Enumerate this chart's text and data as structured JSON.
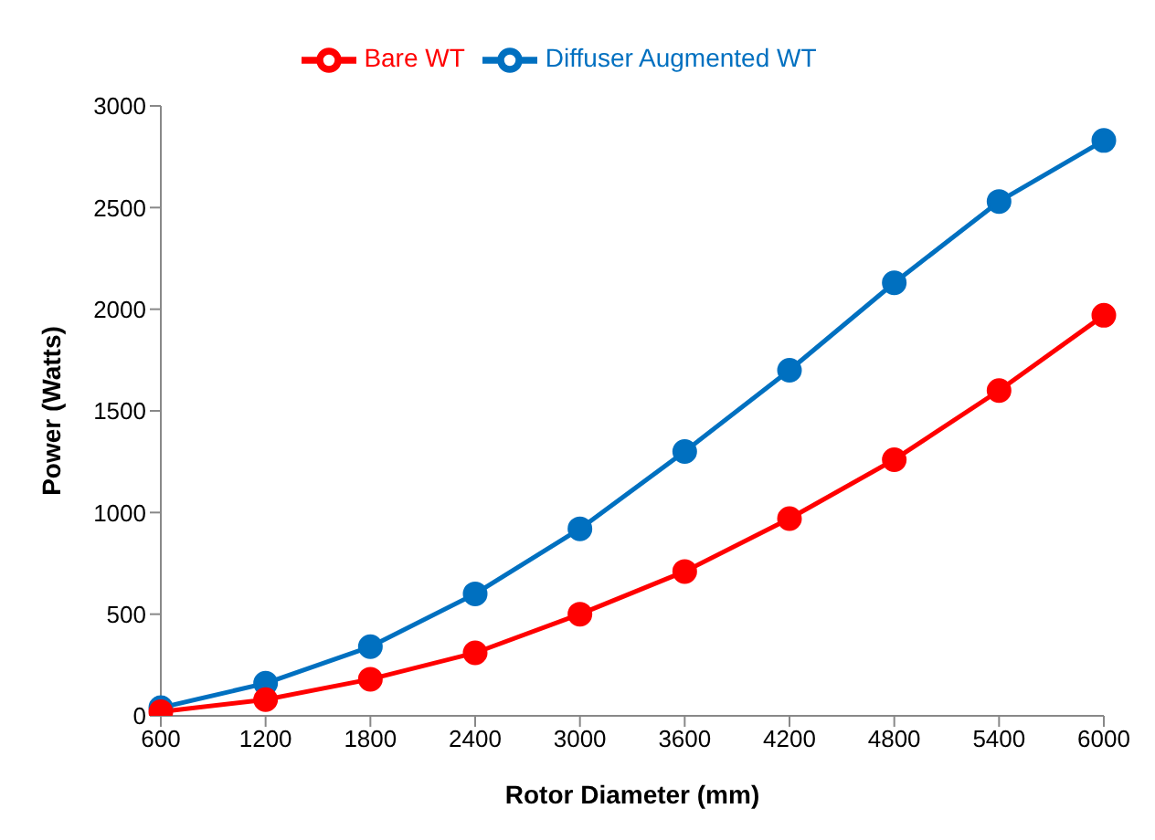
{
  "chart_data": {
    "type": "line",
    "xlabel": "Rotor Diameter (mm)",
    "ylabel": "Power (Watts)",
    "categories": [
      "600",
      "1200",
      "1800",
      "2400",
      "3000",
      "3600",
      "4200",
      "4800",
      "5400",
      "6000"
    ],
    "series": [
      {
        "name": "Bare WT",
        "color": "#ff0000",
        "values": [
          20,
          80,
          180,
          310,
          500,
          710,
          970,
          1260,
          1600,
          1970
        ]
      },
      {
        "name": "Diffuser Augmented  WT",
        "color": "#0070c0",
        "values": [
          40,
          160,
          340,
          600,
          920,
          1300,
          1700,
          2130,
          2530,
          2830
        ]
      }
    ],
    "ylim": [
      0,
      3000
    ],
    "yticks": [
      0,
      500,
      1000,
      1500,
      2000,
      2500,
      3000
    ],
    "grid": false,
    "legend": "top",
    "marker": "circle"
  }
}
